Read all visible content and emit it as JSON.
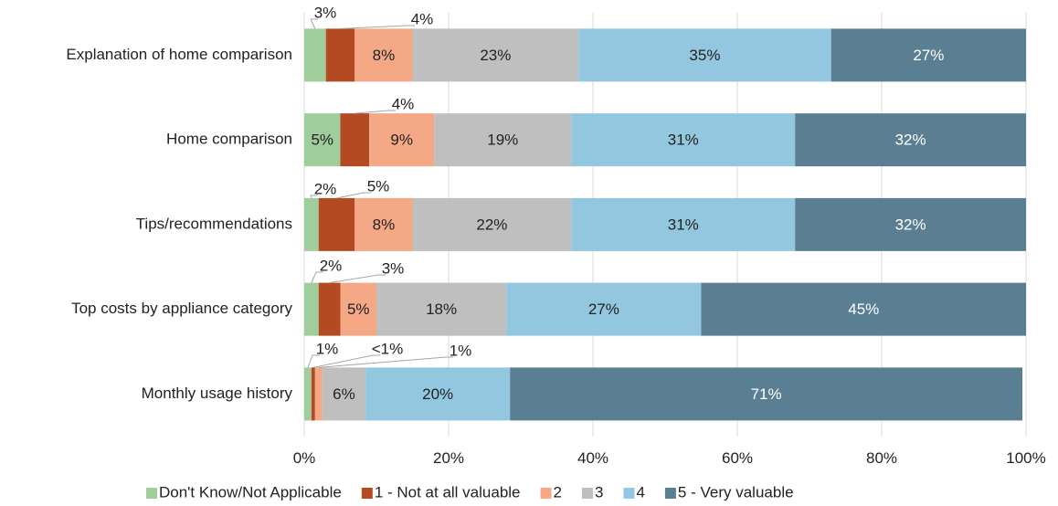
{
  "chart_data": {
    "type": "stacked_bar_horizontal",
    "categories": [
      "Explanation of home comparison",
      "Home comparison",
      "Tips/recommendations",
      "Top costs by appliance category",
      "Monthly usage history"
    ],
    "series": [
      {
        "name": "Don't Know/Not Applicable",
        "color": "#9fcd9b",
        "values": [
          3,
          5,
          2,
          2,
          1
        ],
        "value_labels": [
          "3%",
          "5%",
          "2%",
          "2%",
          "1%"
        ]
      },
      {
        "name": "1 - Not at all valuable",
        "color": "#b34a22",
        "values": [
          4,
          4,
          5,
          3,
          0.5
        ],
        "value_labels": [
          "4%",
          "4%",
          "5%",
          "3%",
          "<1%"
        ]
      },
      {
        "name": "2",
        "color": "#f4a886",
        "values": [
          8,
          9,
          8,
          5,
          1
        ],
        "value_labels": [
          "8%",
          "9%",
          "8%",
          "5%",
          "1%"
        ]
      },
      {
        "name": "3",
        "color": "#bfbfbf",
        "values": [
          23,
          19,
          22,
          18,
          6
        ],
        "value_labels": [
          "23%",
          "19%",
          "22%",
          "18%",
          "6%"
        ]
      },
      {
        "name": "4",
        "color": "#93c6df",
        "values": [
          35,
          31,
          31,
          27,
          20
        ],
        "value_labels": [
          "35%",
          "31%",
          "31%",
          "27%",
          "20%"
        ]
      },
      {
        "name": "5 - Very valuable",
        "color": "#5b7f92",
        "values": [
          27,
          32,
          32,
          45,
          71
        ],
        "value_labels": [
          "27%",
          "32%",
          "32%",
          "45%",
          "71%"
        ]
      }
    ],
    "xlim": [
      0,
      100
    ],
    "xticks": [
      {
        "value": 0,
        "label": "0%"
      },
      {
        "value": 20,
        "label": "20%"
      },
      {
        "value": 40,
        "label": "40%"
      },
      {
        "value": 60,
        "label": "60%"
      },
      {
        "value": 80,
        "label": "80%"
      },
      {
        "value": 100,
        "label": "100%"
      }
    ],
    "grid": true,
    "legend": "bottom"
  }
}
